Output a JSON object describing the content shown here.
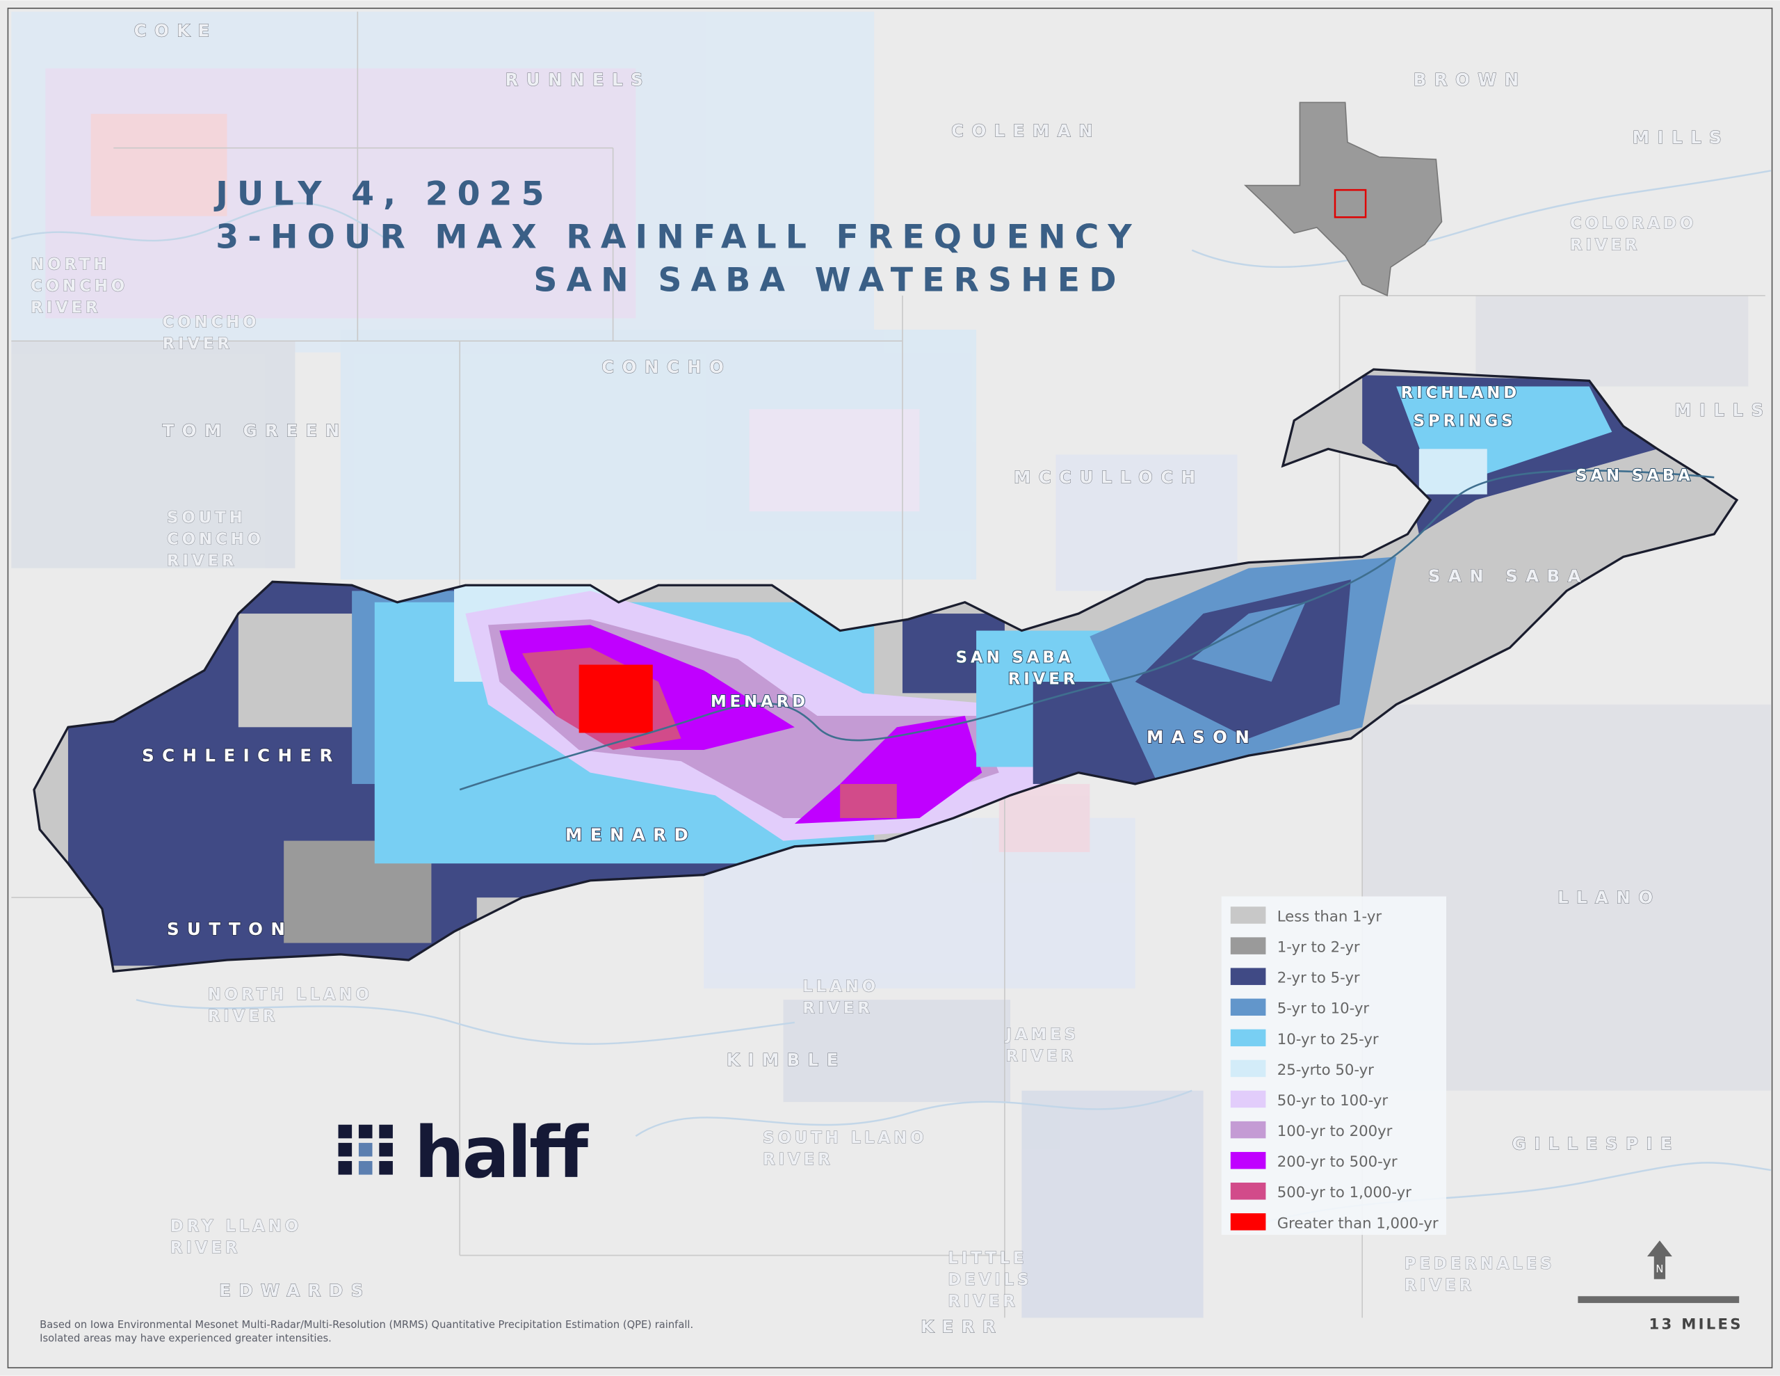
{
  "title": {
    "line1": "JULY 4, 2025",
    "line2": "3-HOUR MAX RAINFALL FREQUENCY",
    "line3": "SAN SABA WATERSHED"
  },
  "counties": {
    "coke": "COKE",
    "runnels": "RUNNELS",
    "coleman": "COLEMAN",
    "brown": "BROWN",
    "mills": "MILLS",
    "mills2": "MILLS",
    "concho": "CONCHO",
    "tom_green": "TOM GREEN",
    "mcculloch": "MCCULLOCH",
    "san_saba": "SAN SABA",
    "schleicher": "SCHLEICHER",
    "menard": "MENARD",
    "mason": "MASON",
    "sutton": "SUTTON",
    "kimble": "KIMBLE",
    "llano": "LLANO",
    "gillespie": "GILLESPIE",
    "edwards": "EDWARDS",
    "kerr": "KERR"
  },
  "places": {
    "richland_springs_1": "RICHLAND",
    "richland_springs_2": "SPRINGS",
    "menard_town": "MENARD",
    "san_saba_town": "SAN SABA"
  },
  "rivers": {
    "north_concho": [
      "NORTH",
      "CONCHO",
      "RIVER"
    ],
    "concho": [
      "CONCHO",
      "RIVER"
    ],
    "south_concho": [
      "SOUTH",
      "CONCHO",
      "RIVER"
    ],
    "colorado": [
      "COLORADO",
      "RIVER"
    ],
    "san_saba": [
      "SAN SABA",
      "RIVER"
    ],
    "north_llano": [
      "NORTH LLANO",
      "RIVER"
    ],
    "llano": [
      "LLANO",
      "RIVER"
    ],
    "james": [
      "JAMES",
      "RIVER"
    ],
    "south_llano": [
      "SOUTH LLANO",
      "RIVER"
    ],
    "dry_llano": [
      "DRY LLANO",
      "RIVER"
    ],
    "little_devils": [
      "LITTLE",
      "DEVILS",
      "RIVER"
    ],
    "pedernales": [
      "PEDERNALES",
      "RIVER"
    ]
  },
  "legend": {
    "items": [
      {
        "label": "Less than 1-yr",
        "color": "#c8c8c8"
      },
      {
        "label": "1-yr to 2-yr",
        "color": "#9a9a9a"
      },
      {
        "label": "2-yr to 5-yr",
        "color": "#404a85"
      },
      {
        "label": "5-yr to 10-yr",
        "color": "#6296cb"
      },
      {
        "label": "10-yr to 25-yr",
        "color": "#78cff3"
      },
      {
        "label": "25-yrto 50-yr",
        "color": "#d3ecf9"
      },
      {
        "label": "50-yr to 100-yr",
        "color": "#e2cdfb"
      },
      {
        "label": "100-yr to 200yr",
        "color": "#c49bd4"
      },
      {
        "label": "200-yr to 500-yr",
        "color": "#c000ff"
      },
      {
        "label": "500-yr to 1,000-yr",
        "color": "#d24b8a"
      },
      {
        "label": "Greater than 1,000-yr",
        "color": "#ff0000"
      }
    ]
  },
  "scale_bar": {
    "label": "13 MILES"
  },
  "north_arrow": {
    "label": "N"
  },
  "logo": {
    "text": "halff"
  },
  "note": {
    "line1": "Based on Iowa Environmental Mesonet Multi-Radar/Multi-Resolution (MRMS) Quantitative Precipitation Estimation (QPE) rainfall.",
    "line2": "Isolated areas may have experienced greater intensities."
  },
  "colors": {
    "background": "#ebebeb",
    "title": "#3a5f86",
    "inset_highlight": "#e00000"
  }
}
